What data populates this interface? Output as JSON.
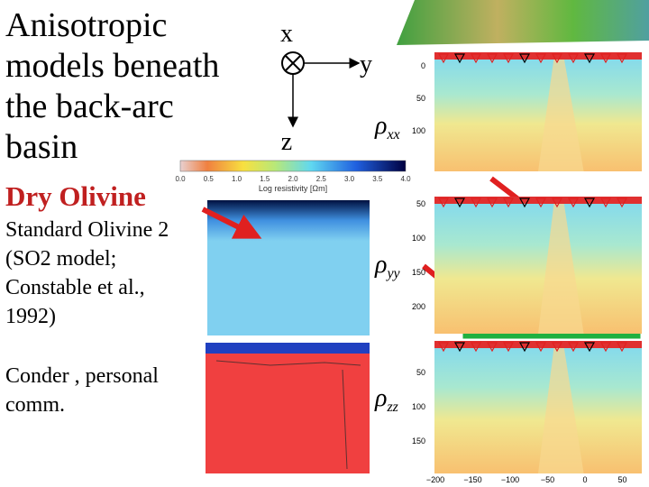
{
  "title": {
    "lines": [
      "Anisotropic",
      "models beneath",
      "the back-arc",
      "basin"
    ]
  },
  "axes_diagram": {
    "x": "x",
    "y": "y",
    "z": "z"
  },
  "colorbar": {
    "ticks": [
      "0.0",
      "0.5",
      "1.0",
      "1.5",
      "2.0",
      "2.5",
      "3.0",
      "3.5",
      "4.0"
    ],
    "label": "Log resistivity [Ωm]"
  },
  "subtitle": "Dry Olivine",
  "models": [
    {
      "lines": [
        "Standard Olivine 2",
        "(SO2 model;",
        "Constable et al.,",
        "1992)"
      ]
    },
    {
      "lines": [
        "Conder , personal",
        "comm."
      ]
    }
  ],
  "sections": [
    {
      "symbol": "ρ",
      "subscript": "xx",
      "depth_ticks": [
        "0",
        "50",
        "100"
      ]
    },
    {
      "symbol": "ρ",
      "subscript": "yy",
      "depth_ticks": [
        "50",
        "100",
        "150",
        "200"
      ]
    },
    {
      "symbol": "ρ",
      "subscript": "zz",
      "depth_ticks": [
        "50",
        "100",
        "150"
      ]
    }
  ],
  "distance_ticks": [
    "−200",
    "−150",
    "−100",
    "−50",
    "0",
    "50"
  ]
}
